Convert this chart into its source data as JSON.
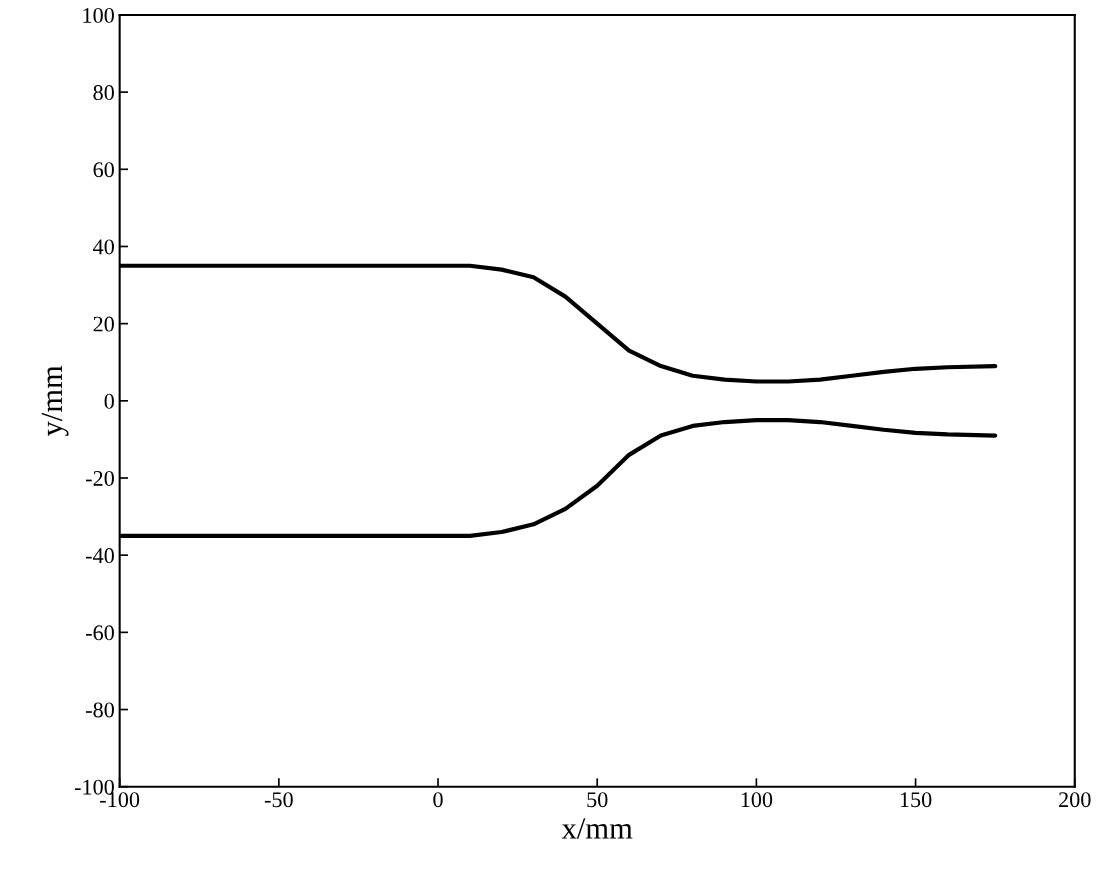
{
  "chart_data": {
    "type": "line",
    "xlabel": "x/mm",
    "ylabel": "y/mm",
    "xlim": [
      -100,
      200
    ],
    "ylim": [
      -100,
      100
    ],
    "xticks": [
      -100,
      -50,
      0,
      50,
      100,
      150,
      200
    ],
    "yticks": [
      -100,
      -80,
      -60,
      -40,
      -20,
      0,
      20,
      40,
      60,
      80,
      100
    ],
    "grid": false,
    "legend": false,
    "marker": "none",
    "line_style": "solid",
    "series": [
      {
        "color": "#000000",
        "x": [
          -100,
          -50,
          0,
          10,
          20,
          30,
          40,
          50,
          60,
          70,
          80,
          90,
          100,
          110,
          120,
          130,
          140,
          150,
          160,
          175
        ],
        "values": [
          35,
          35,
          35,
          35,
          34,
          32,
          27,
          20,
          13,
          9,
          6.5,
          5.5,
          5,
          5,
          5.5,
          6.5,
          7.5,
          8.3,
          8.7,
          9
        ]
      },
      {
        "color": "#000000",
        "x": [
          -100,
          -50,
          0,
          10,
          20,
          30,
          40,
          50,
          60,
          70,
          80,
          90,
          100,
          110,
          120,
          130,
          140,
          150,
          160,
          175
        ],
        "values": [
          -35,
          -35,
          -35,
          -35,
          -34,
          -32,
          -28,
          -22,
          -14,
          -9,
          -6.5,
          -5.5,
          -5,
          -5,
          -5.5,
          -6.5,
          -7.5,
          -8.3,
          -8.7,
          -9
        ]
      }
    ]
  }
}
